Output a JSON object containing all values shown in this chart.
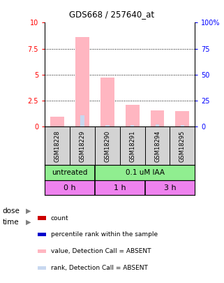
{
  "title": "GDS668 / 257640_at",
  "samples": [
    "GSM18228",
    "GSM18229",
    "GSM18290",
    "GSM18291",
    "GSM18294",
    "GSM18295"
  ],
  "bar_values_pink": [
    1.0,
    8.6,
    4.7,
    2.1,
    1.6,
    1.5
  ],
  "bar_values_blue": [
    0.0,
    1.1,
    0.15,
    0.15,
    0.2,
    0.15
  ],
  "ylim": [
    0,
    10
  ],
  "yticks": [
    0,
    2.5,
    5.0,
    7.5,
    10
  ],
  "ytick_labels_left": [
    "0",
    "2.5",
    "5",
    "7.5",
    "10"
  ],
  "ytick_labels_right": [
    "0",
    "25",
    "50",
    "75",
    "100%"
  ],
  "color_pink": "#FFB6C1",
  "color_lightblue": "#C8D8F0",
  "color_red": "#CC0000",
  "color_blue": "#0000CC",
  "dose_row_color": "#90EE90",
  "time_row_color": "#EE82EE",
  "label_row_bg": "#D3D3D3",
  "legend_items": [
    {
      "color": "#CC0000",
      "label": "count"
    },
    {
      "color": "#0000CC",
      "label": "percentile rank within the sample"
    },
    {
      "color": "#FFB6C1",
      "label": "value, Detection Call = ABSENT"
    },
    {
      "color": "#C8D8F0",
      "label": "rank, Detection Call = ABSENT"
    }
  ]
}
